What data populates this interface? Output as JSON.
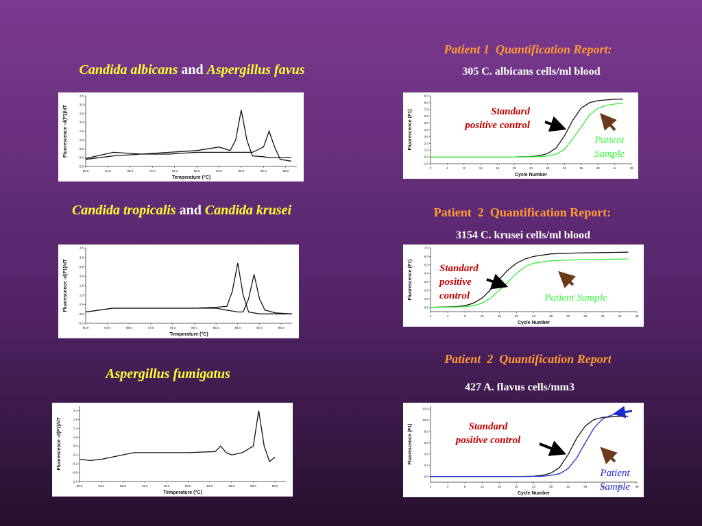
{
  "slide": {
    "headings": [
      [
        {
          "text": "Candida albicans",
          "italic": true
        },
        {
          "text": "and",
          "italic": false
        },
        {
          "text": "Aspergillus favus",
          "italic": true
        }
      ],
      [
        {
          "text": "Candida tropicalis",
          "italic": true
        },
        {
          "text": "and",
          "italic": false
        },
        {
          "text": "Candida krusei",
          "italic": true
        }
      ],
      [
        {
          "text": "Aspergillus fumigatus",
          "italic": true
        }
      ]
    ],
    "reports": [
      {
        "title": "Patient 1  Quantification Report:",
        "italic": true,
        "count": "305 C. albicans cells/ml blood"
      },
      {
        "title": "Patient  2  Quantification Report:",
        "italic": false,
        "count": "3154 C. krusei cells/ml blood"
      },
      {
        "title": "Patient  2  Quantification Report",
        "italic": true,
        "count": "427 A. flavus cells/mm3"
      }
    ]
  },
  "chart_data": [
    {
      "type": "line",
      "xlabel": "Temperature (°C)",
      "ylabel": "Fluorescence -d(F1)/dT",
      "x": [
        60,
        65,
        70,
        75,
        80,
        84,
        86,
        87,
        88,
        89,
        90,
        92,
        93,
        94,
        95,
        97
      ],
      "series": [
        {
          "color": "#111111",
          "values": [
            -0.1,
            0.1,
            0.2,
            0.3,
            0.4,
            0.6,
            0.4,
            1.0,
            2.7,
            1.0,
            0.1,
            0.05,
            0.0,
            0.0,
            0.0,
            0.0
          ]
        },
        {
          "color": "#111111",
          "values": [
            -0.05,
            0.3,
            0.2,
            0.2,
            0.3,
            0.3,
            0.3,
            0.3,
            0.3,
            0.3,
            0.3,
            0.6,
            1.5,
            0.6,
            -0.1,
            -0.2
          ]
        }
      ],
      "xlim": [
        60,
        98
      ],
      "ylim": [
        -0.5,
        3.5
      ],
      "xticks": [
        {
          "value": 60,
          "label": "60.0"
        },
        {
          "value": 64,
          "label": "64.0"
        },
        {
          "value": 68,
          "label": "68.0"
        },
        {
          "value": 72,
          "label": "72.0"
        },
        {
          "value": 76,
          "label": "76.0"
        },
        {
          "value": 80,
          "label": "80.0"
        },
        {
          "value": 84,
          "label": "84.0"
        },
        {
          "value": 88,
          "label": "88.0"
        },
        {
          "value": 92,
          "label": "92.0"
        },
        {
          "value": 96,
          "label": "96.0"
        }
      ],
      "yticks": [
        {
          "value": -0.5,
          "label": "-0.5"
        },
        {
          "value": 0,
          "label": "0.0"
        },
        {
          "value": 0.5,
          "label": "0.5"
        },
        {
          "value": 1,
          "label": "1.0"
        },
        {
          "value": 1.5,
          "label": "1.5"
        },
        {
          "value": 2,
          "label": "2.0"
        },
        {
          "value": 2.5,
          "label": "2.5"
        },
        {
          "value": 3,
          "label": "3.0"
        },
        {
          "value": 3.5,
          "label": "3.5"
        }
      ],
      "annotations": []
    },
    {
      "type": "line",
      "xlabel": "Temperature (°C)",
      "ylabel": "Fluorescence -d(F1)/dT",
      "x": [
        60,
        65,
        70,
        75,
        80,
        84,
        86,
        87,
        88,
        89,
        90,
        91,
        92,
        93,
        95,
        98
      ],
      "series": [
        {
          "color": "#111111",
          "values": [
            0.1,
            0.3,
            0.3,
            0.3,
            0.3,
            0.35,
            0.4,
            1.2,
            2.7,
            1.0,
            0.1,
            0.05,
            0.0,
            0.0,
            0.0,
            0.0
          ]
        },
        {
          "color": "#111111",
          "values": [
            0.1,
            0.3,
            0.3,
            0.3,
            0.3,
            0.3,
            0.2,
            0.15,
            0.1,
            0.1,
            0.8,
            2.1,
            0.8,
            0.2,
            0.05,
            0.0
          ]
        }
      ],
      "xlim": [
        60,
        98
      ],
      "ylim": [
        -0.5,
        3.5
      ],
      "xticks": [
        {
          "value": 60,
          "label": "60.0"
        },
        {
          "value": 64,
          "label": "64.0"
        },
        {
          "value": 68,
          "label": "68.0"
        },
        {
          "value": 72,
          "label": "72.0"
        },
        {
          "value": 76,
          "label": "76.0"
        },
        {
          "value": 80,
          "label": "80.0"
        },
        {
          "value": 84,
          "label": "84.0"
        },
        {
          "value": 88,
          "label": "88.0"
        },
        {
          "value": 92,
          "label": "92.0"
        },
        {
          "value": 96,
          "label": "96.0"
        }
      ],
      "yticks": [
        {
          "value": -0.5,
          "label": "-0.5"
        },
        {
          "value": 0,
          "label": "0.0"
        },
        {
          "value": 0.5,
          "label": "0.5"
        },
        {
          "value": 1,
          "label": "1.0"
        },
        {
          "value": 1.5,
          "label": "1.5"
        },
        {
          "value": 2,
          "label": "2.0"
        },
        {
          "value": 2.5,
          "label": "2.5"
        },
        {
          "value": 3,
          "label": "3.0"
        },
        {
          "value": 3.5,
          "label": "3.5"
        }
      ],
      "annotations": []
    },
    {
      "type": "line",
      "xlabel": "Temperature (°C)",
      "ylabel": "Fluorescence -d(F1)/dT",
      "x": [
        60,
        62,
        64,
        66,
        70,
        75,
        80,
        85,
        86,
        87,
        88,
        90,
        92,
        93,
        94,
        95,
        96
      ],
      "series": [
        {
          "color": "#111111",
          "values": [
            0.0,
            -0.05,
            0.0,
            0.1,
            0.3,
            0.3,
            0.3,
            0.35,
            0.6,
            0.3,
            0.2,
            0.3,
            0.6,
            2.2,
            0.6,
            -0.1,
            0.1
          ]
        }
      ],
      "xlim": [
        60,
        98
      ],
      "ylim": [
        -1.0,
        2.4
      ],
      "xticks": [
        {
          "value": 60,
          "label": "60.0"
        },
        {
          "value": 64,
          "label": "64.0"
        },
        {
          "value": 68,
          "label": "68.0"
        },
        {
          "value": 72,
          "label": "72.0"
        },
        {
          "value": 76,
          "label": "76.0"
        },
        {
          "value": 80,
          "label": "80.0"
        },
        {
          "value": 84,
          "label": "84.0"
        },
        {
          "value": 88,
          "label": "88.0"
        },
        {
          "value": 92,
          "label": "92.0"
        },
        {
          "value": 96,
          "label": "96.0"
        }
      ],
      "yticks": [
        {
          "value": -1,
          "label": "-1.0"
        },
        {
          "value": -0.6,
          "label": "-0.6"
        },
        {
          "value": -0.2,
          "label": "-0.2"
        },
        {
          "value": 0.2,
          "label": "0.2"
        },
        {
          "value": 0.6,
          "label": "0.6"
        },
        {
          "value": 1,
          "label": "1.0"
        },
        {
          "value": 1.4,
          "label": "1.4"
        },
        {
          "value": 1.8,
          "label": "1.8"
        },
        {
          "value": 2.2,
          "label": "2.2"
        }
      ],
      "annotations": []
    },
    {
      "type": "line",
      "xlabel": "Cycle Number",
      "ylabel": "Fluorescence (F1)",
      "x": [
        0,
        10,
        20,
        24,
        26,
        28,
        30,
        32,
        34,
        36,
        38,
        40,
        42,
        44,
        46
      ],
      "series": [
        {
          "color": "#111111",
          "values": [
            0,
            0,
            0,
            0.05,
            0.17,
            0.5,
            1.3,
            3.1,
            5.4,
            7.2,
            8.0,
            8.3,
            8.4,
            8.5,
            8.5
          ]
        },
        {
          "color": "#33ee33",
          "values": [
            0,
            0,
            0,
            0.01,
            0.04,
            0.13,
            0.4,
            1.1,
            2.7,
            4.4,
            6.2,
            7.2,
            7.6,
            7.8,
            7.9
          ]
        }
      ],
      "xlim": [
        0,
        48
      ],
      "ylim": [
        -1,
        9
      ],
      "xticks": [
        0,
        4,
        8,
        12,
        16,
        20,
        24,
        28,
        32,
        36,
        40,
        44,
        48
      ],
      "yticks": [
        {
          "value": -1,
          "label": "-1.0"
        },
        {
          "value": 0,
          "label": "0.0"
        },
        {
          "value": 1,
          "label": "1.0"
        },
        {
          "value": 2,
          "label": "2.0"
        },
        {
          "value": 3,
          "label": "3.0"
        },
        {
          "value": 4,
          "label": "4.0"
        },
        {
          "value": 5,
          "label": "5.0"
        },
        {
          "value": 6,
          "label": "6.0"
        },
        {
          "value": 7,
          "label": "7.0"
        },
        {
          "value": 8,
          "label": "8.0"
        },
        {
          "value": 9,
          "label": "9.0"
        }
      ],
      "annotations": [
        {
          "lines": [
            "Standard",
            "positive control"
          ],
          "color": "#c00000"
        },
        {
          "lines": [
            "Patient",
            "Sample"
          ],
          "color": "#33ff33"
        }
      ]
    },
    {
      "type": "line",
      "xlabel": "Cycle Number",
      "ylabel": "Fluorescence (F1)",
      "x": [
        0,
        6,
        8,
        10,
        12,
        14,
        16,
        18,
        20,
        22,
        24,
        28,
        34,
        40,
        46
      ],
      "series": [
        {
          "color": "#111111",
          "values": [
            0,
            0.1,
            0.2,
            0.5,
            1.1,
            2.1,
            3.3,
            4.4,
            5.2,
            5.7,
            6.0,
            6.3,
            6.4,
            6.45,
            6.5
          ]
        },
        {
          "color": "#33ee33",
          "values": [
            0,
            0.05,
            0.1,
            0.2,
            0.5,
            1.1,
            2.0,
            3.0,
            4.0,
            4.8,
            5.2,
            5.5,
            5.6,
            5.65,
            5.7
          ]
        }
      ],
      "xlim": [
        0,
        48
      ],
      "ylim": [
        -0.5,
        7
      ],
      "xticks": [
        0,
        4,
        8,
        12,
        16,
        20,
        24,
        28,
        32,
        36,
        40,
        44,
        48
      ],
      "yticks": [
        {
          "value": 0,
          "label": "0.0"
        },
        {
          "value": 1,
          "label": "1.0"
        },
        {
          "value": 2,
          "label": "2.0"
        },
        {
          "value": 3,
          "label": "3.0"
        },
        {
          "value": 4,
          "label": "4.0"
        },
        {
          "value": 5,
          "label": "5.0"
        },
        {
          "value": 6,
          "label": "6.0"
        },
        {
          "value": 7,
          "label": "7.0"
        }
      ],
      "annotations": [
        {
          "lines": [
            "Standard",
            "positive",
            "control"
          ],
          "color": "#c00000"
        },
        {
          "lines": [
            "Patient Sample"
          ],
          "color": "#33ff33"
        }
      ]
    },
    {
      "type": "line",
      "xlabel": "Cycle Number",
      "ylabel": "Fluorescence (F1)",
      "x": [
        0,
        10,
        20,
        24,
        26,
        28,
        30,
        32,
        34,
        36,
        38,
        40,
        42,
        44,
        46
      ],
      "series": [
        {
          "color": "#111111",
          "values": [
            0,
            0,
            0,
            0.06,
            0.2,
            0.6,
            1.6,
            3.9,
            6.8,
            9.0,
            10.1,
            10.5,
            10.6,
            10.7,
            10.7
          ]
        },
        {
          "color": "#1a2ad0",
          "values": [
            0,
            0,
            0,
            0.02,
            0.06,
            0.2,
            0.5,
            1.4,
            3.3,
            6.0,
            8.6,
            10.2,
            10.9,
            11.3,
            11.6
          ]
        }
      ],
      "xlim": [
        0,
        48
      ],
      "ylim": [
        -1,
        12.5
      ],
      "xticks": [
        0,
        4,
        8,
        12,
        16,
        20,
        24,
        28,
        32,
        36,
        40,
        44,
        48
      ],
      "yticks": [
        {
          "value": 0,
          "label": "0.0"
        },
        {
          "value": 2,
          "label": "2.0"
        },
        {
          "value": 4,
          "label": "4.0"
        },
        {
          "value": 6,
          "label": "6.0"
        },
        {
          "value": 8,
          "label": "8.0"
        },
        {
          "value": 10,
          "label": "10.0"
        },
        {
          "value": 12,
          "label": "12.0"
        }
      ],
      "annotations": [
        {
          "lines": [
            "Standard",
            "positive control"
          ],
          "color": "#c00000"
        },
        {
          "lines": [
            "Patient",
            "Sample"
          ],
          "color": "#1a2ad0"
        }
      ]
    }
  ]
}
